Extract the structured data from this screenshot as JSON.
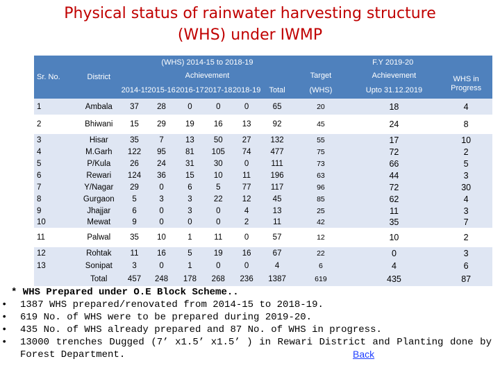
{
  "title_line1": "Physical status of rainwater  harvesting structure",
  "title_line2": "(WHS) under IWMP",
  "table": {
    "sr_no": "Sr. No.",
    "district": "District",
    "group1_title": "(WHS) 2014-15 to 2018-19",
    "group1_sub": "Achievement",
    "years": [
      "2014-15",
      "2015-16",
      "2016-17",
      "2017-18",
      "2018-19",
      "Total"
    ],
    "group2_title": "F.Y 2019-20",
    "target": "Target",
    "target_sub": "(WHS)",
    "achievement": "Achievement",
    "achievement_sub": "Upto 31.12.2019",
    "in_progress": "WHS in Progress",
    "rows": [
      {
        "sr": "1",
        "district": "Ambala",
        "v": [
          "37",
          "28",
          "0",
          "0",
          "0",
          "65"
        ],
        "target": "20",
        "ach": "18",
        "prog": "4"
      },
      {
        "sr": "2",
        "district": "Bhiwani",
        "v": [
          "15",
          "29",
          "19",
          "16",
          "13",
          "92"
        ],
        "target": "45",
        "ach": "24",
        "prog": "8"
      },
      {
        "sr": "3",
        "district": "Hisar",
        "v": [
          "35",
          "7",
          "13",
          "50",
          "27",
          "132"
        ],
        "target": "55",
        "ach": "17",
        "prog": "10"
      },
      {
        "sr": "4",
        "district": "M.Garh",
        "v": [
          "122",
          "95",
          "81",
          "105",
          "74",
          "477"
        ],
        "target": "75",
        "ach": "72",
        "prog": "2"
      },
      {
        "sr": "5",
        "district": "P/Kula",
        "v": [
          "26",
          "24",
          "31",
          "30",
          "0",
          "111"
        ],
        "target": "73",
        "ach": "66",
        "prog": "5"
      },
      {
        "sr": "6",
        "district": "Rewari",
        "v": [
          "124",
          "36",
          "15",
          "10",
          "11",
          "196"
        ],
        "target": "63",
        "ach": "44",
        "prog": "3"
      },
      {
        "sr": "7",
        "district": "Y/Nagar",
        "v": [
          "29",
          "0",
          "6",
          "5",
          "77",
          "117"
        ],
        "target": "96",
        "ach": "72",
        "prog": "30"
      },
      {
        "sr": "8",
        "district": "Gurgaon",
        "v": [
          "5",
          "3",
          "3",
          "22",
          "12",
          "45"
        ],
        "target": "85",
        "ach": "62",
        "prog": "4"
      },
      {
        "sr": "9",
        "district": "Jhajjar",
        "v": [
          "6",
          "0",
          "3",
          "0",
          "4",
          "13"
        ],
        "target": "25",
        "ach": "11",
        "prog": "3"
      },
      {
        "sr": "10",
        "district": "Mewat",
        "v": [
          "9",
          "0",
          "0",
          "0",
          "2",
          "11"
        ],
        "target": "42",
        "ach": "35",
        "prog": "7"
      },
      {
        "sr": "11",
        "district": "Palwal",
        "v": [
          "35",
          "10",
          "1",
          "11",
          "0",
          "57"
        ],
        "target": "12",
        "ach": "10",
        "prog": "2"
      },
      {
        "sr": "12",
        "district": "Rohtak",
        "v": [
          "11",
          "16",
          "5",
          "19",
          "16",
          "67"
        ],
        "target": "22",
        "ach": "0",
        "prog": "3"
      },
      {
        "sr": "13",
        "district": "Sonipat",
        "v": [
          "3",
          "0",
          "1",
          "0",
          "0",
          "4"
        ],
        "target": "6",
        "ach": "4",
        "prog": "6"
      }
    ],
    "total": {
      "label": "Total",
      "v": [
        "457",
        "248",
        "178",
        "268",
        "236",
        "1387"
      ],
      "target": "619",
      "ach": "435",
      "prog": "87"
    }
  },
  "notes": {
    "heading": "* WHS Prepared under O.E Block Scheme..",
    "bullets": [
      "1387 WHS prepared/renovated from 2014-15 to 2018-19.",
      "619 No. of WHS were to be prepared during 2019-20.",
      "435 No. of WHS already prepared and 87 No. of WHS in progress.",
      "13000 trenches Dugged (7’ x1.5’ x1.5’ ) in Rewari District and Planting done by Forest Department."
    ]
  },
  "back_link": "Back"
}
